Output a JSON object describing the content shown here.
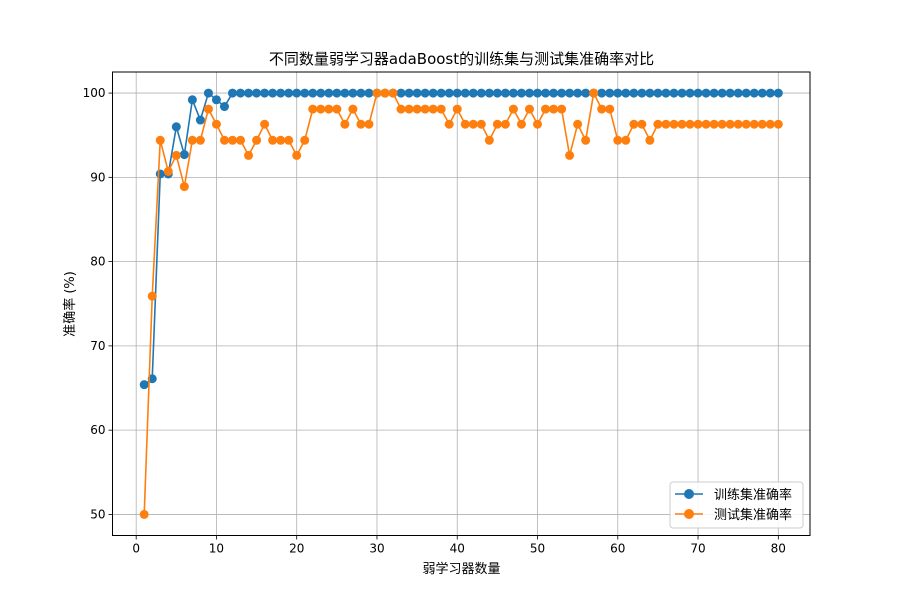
{
  "chart_data": {
    "type": "line",
    "title": "不同数量弱学习器adaBoost的训练集与测试集准确率对比",
    "xlabel": "弱学习器数量",
    "ylabel": "准确率 (%)",
    "xlim": [
      -2.95,
      83.95
    ],
    "ylim": [
      47.5,
      102.5
    ],
    "xticks": [
      0,
      10,
      20,
      30,
      40,
      50,
      60,
      70,
      80
    ],
    "yticks": [
      50,
      60,
      70,
      80,
      90,
      100
    ],
    "grid": true,
    "legend_position": "bottom-right",
    "x": [
      1,
      2,
      3,
      4,
      5,
      6,
      7,
      8,
      9,
      10,
      11,
      12,
      13,
      14,
      15,
      16,
      17,
      18,
      19,
      20,
      21,
      22,
      23,
      24,
      25,
      26,
      27,
      28,
      29,
      30,
      31,
      32,
      33,
      34,
      35,
      36,
      37,
      38,
      39,
      40,
      41,
      42,
      43,
      44,
      45,
      46,
      47,
      48,
      49,
      50,
      51,
      52,
      53,
      54,
      55,
      56,
      57,
      58,
      59,
      60,
      61,
      62,
      63,
      64,
      65,
      66,
      67,
      68,
      69,
      70,
      71,
      72,
      73,
      74,
      75,
      76,
      77,
      78,
      79,
      80
    ],
    "series": [
      {
        "name": "训练集准确率",
        "color": "#1f77b4",
        "values": [
          65.4,
          66.1,
          90.4,
          90.4,
          96.0,
          92.7,
          99.2,
          96.8,
          100,
          99.2,
          98.4,
          100,
          100,
          100,
          100,
          100,
          100,
          100,
          100,
          100,
          100,
          100,
          100,
          100,
          100,
          100,
          100,
          100,
          100,
          100,
          100,
          100,
          100,
          100,
          100,
          100,
          100,
          100,
          100,
          100,
          100,
          100,
          100,
          100,
          100,
          100,
          100,
          100,
          100,
          100,
          100,
          100,
          100,
          100,
          100,
          100,
          100,
          100,
          100,
          100,
          100,
          100,
          100,
          100,
          100,
          100,
          100,
          100,
          100,
          100,
          100,
          100,
          100,
          100,
          100,
          100,
          100,
          100,
          100,
          100
        ]
      },
      {
        "name": "测试集准确率",
        "color": "#ff7f0e",
        "values": [
          50.0,
          75.9,
          94.4,
          90.7,
          92.6,
          88.9,
          94.4,
          94.4,
          98.1,
          96.3,
          94.4,
          94.4,
          94.4,
          92.6,
          94.4,
          96.3,
          94.4,
          94.4,
          94.4,
          92.6,
          94.4,
          98.1,
          98.1,
          98.1,
          98.1,
          96.3,
          98.1,
          96.3,
          96.3,
          100,
          100,
          100,
          98.1,
          98.1,
          98.1,
          98.1,
          98.1,
          98.1,
          96.3,
          98.1,
          96.3,
          96.3,
          96.3,
          94.4,
          96.3,
          96.3,
          98.1,
          96.3,
          98.1,
          96.3,
          98.1,
          98.1,
          98.1,
          92.6,
          96.3,
          94.4,
          100,
          98.1,
          98.1,
          94.4,
          94.4,
          96.3,
          96.3,
          94.4,
          96.3,
          96.3,
          96.3,
          96.3,
          96.3,
          96.3,
          96.3,
          96.3,
          96.3,
          96.3,
          96.3,
          96.3,
          96.3,
          96.3,
          96.3,
          96.3
        ]
      }
    ]
  }
}
